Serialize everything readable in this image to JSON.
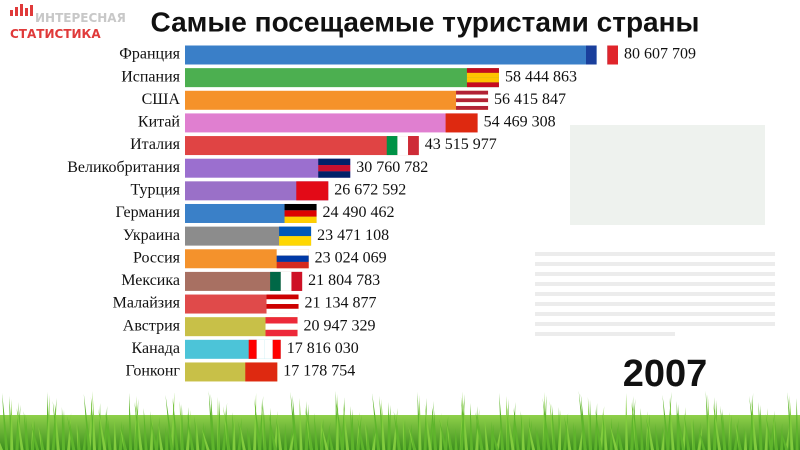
{
  "logo": [
    "ИНТЕРЕСНАЯ",
    "СТАТИСТИКА"
  ],
  "chart_data": {
    "type": "bar",
    "orientation": "horizontal",
    "title": "Самые посещаемые туристами страны",
    "year": "2007",
    "categories": [
      "Франция",
      "Испания",
      "США",
      "Китай",
      "Италия",
      "Великобритания",
      "Турция",
      "Германия",
      "Украина",
      "Россия",
      "Мексика",
      "Малайзия",
      "Австрия",
      "Канада",
      "Гонконг"
    ],
    "values": [
      80607709,
      58444863,
      56415847,
      54469308,
      43515977,
      30760782,
      26672592,
      24490462,
      23471108,
      23024069,
      21804783,
      21134877,
      20947329,
      17816030,
      17178754
    ],
    "value_labels": [
      "80 607 709",
      "58 444 863",
      "56 415 847",
      "54 469 308",
      "43 515 977",
      "30 760 782",
      "26 672 592",
      "24 490 462",
      "23 471 108",
      "23 024 069",
      "21 804 783",
      "21 134 877",
      "20 947 329",
      "17 816 030",
      "17 178 754"
    ],
    "colors": [
      "#3a7fc8",
      "#4caf50",
      "#f5922a",
      "#e07fd0",
      "#e04444",
      "#9b6fcf",
      "#9a70c8",
      "#3a80c8",
      "#8c8c8c",
      "#f4922c",
      "#a87062",
      "#e04a4a",
      "#c8c048",
      "#4cc4d8",
      "#c8c048"
    ]
  }
}
